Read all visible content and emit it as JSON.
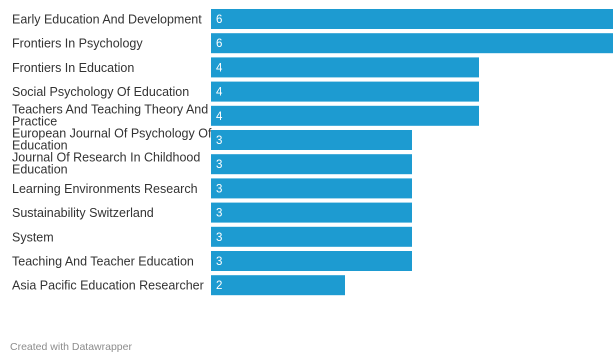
{
  "chart_data": {
    "type": "bar",
    "orientation": "horizontal",
    "categories": [
      "Early Education And Development",
      "Frontiers In Psychology",
      "Frontiers In Education",
      "Social Psychology Of Education",
      "Teachers And Teaching Theory And Practice",
      "European Journal Of Psychology Of Education",
      "Journal Of Research In Childhood Education",
      "Learning Environments Research",
      "Sustainability Switzerland",
      "System",
      "Teaching And Teacher Education",
      "Asia Pacific Education Researcher"
    ],
    "label_lines": [
      [
        "Early Education And Development"
      ],
      [
        "Frontiers In Psychology"
      ],
      [
        "Frontiers In Education"
      ],
      [
        "Social Psychology Of Education"
      ],
      [
        "Teachers And Teaching Theory And",
        "Practice"
      ],
      [
        "European Journal Of Psychology Of",
        "Education"
      ],
      [
        "Journal Of Research In Childhood",
        "Education"
      ],
      [
        "Learning Environments Research"
      ],
      [
        "Sustainability Switzerland"
      ],
      [
        "System"
      ],
      [
        "Teaching And Teacher Education"
      ],
      [
        "Asia Pacific Education Researcher"
      ]
    ],
    "values": [
      6,
      6,
      4,
      4,
      4,
      3,
      3,
      3,
      3,
      3,
      3,
      2
    ],
    "xlim": [
      0,
      6
    ],
    "bar_color": "#1d9bd1",
    "value_label_color": "#ffffff",
    "grid": false,
    "legend": "none"
  },
  "footer": {
    "credit": "Created with Datawrapper"
  }
}
